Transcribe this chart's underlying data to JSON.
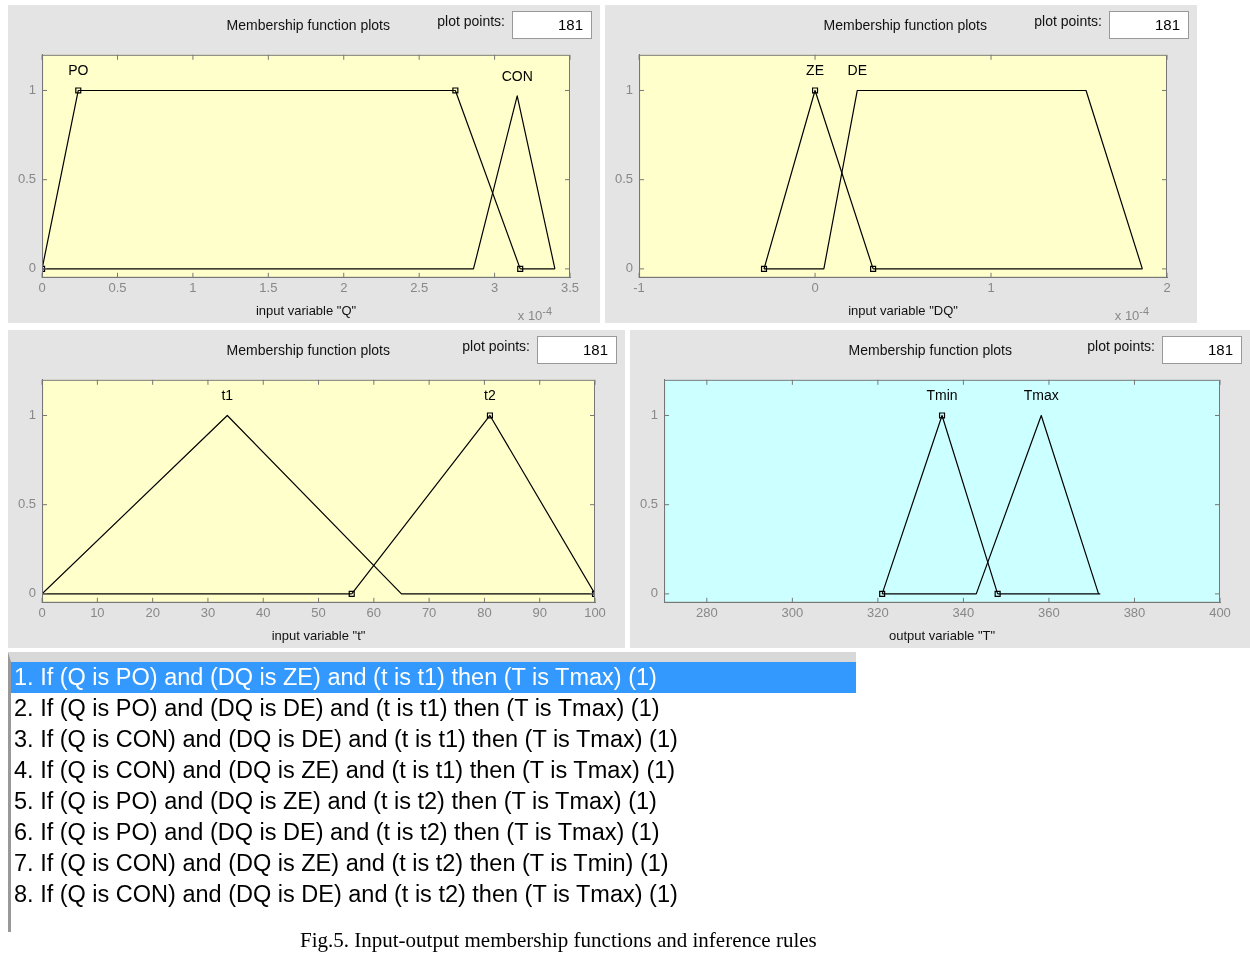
{
  "chart_data": [
    {
      "type": "line",
      "title": "Membership function plots",
      "xlabel": "input variable \"Q\"",
      "annotations": [
        "plot points:",
        "181",
        "x 10$^{-4}$"
      ],
      "xlim": [
        0,
        3.5
      ],
      "xticks": [
        0,
        0.5,
        1,
        1.5,
        2,
        2.5,
        3,
        3.5
      ],
      "ylim": [
        -0.05,
        1.2
      ],
      "yticks": [
        0,
        0.5,
        1
      ],
      "series": [
        {
          "name": "PO",
          "color": "#000000",
          "marker": "square",
          "x": [
            0,
            0.24,
            2.74,
            3.17
          ],
          "values": [
            0,
            1,
            1,
            0
          ]
        },
        {
          "color": "#000000",
          "marker": "none",
          "x": [
            3.17,
            3.4
          ],
          "values": [
            0,
            0
          ]
        },
        {
          "name": "CON",
          "color": "#000000",
          "marker": "none",
          "x": [
            0,
            2.86,
            3.15,
            3.4
          ],
          "values": [
            0,
            0,
            0.97,
            0
          ]
        }
      ]
    },
    {
      "type": "line",
      "title": "Membership function plots",
      "xlabel": "input variable \"DQ\"",
      "annotations": [
        "plot points:",
        "181",
        "x 10$^{-4}$"
      ],
      "xlim": [
        -1,
        2
      ],
      "xticks": [
        -1,
        0,
        1,
        2
      ],
      "ylim": [
        -0.05,
        1.2
      ],
      "yticks": [
        0,
        0.5,
        1
      ],
      "series": [
        {
          "name": "ZE",
          "color": "#000000",
          "marker": "square",
          "x": [
            -0.29,
            0,
            0.33
          ],
          "values": [
            0,
            1,
            0
          ]
        },
        {
          "color": "#000000",
          "marker": "none",
          "x": [
            0.33,
            1.86
          ],
          "values": [
            0,
            0
          ]
        },
        {
          "name": "DE",
          "color": "#000000",
          "marker": "none",
          "x": [
            -0.29,
            0.05,
            0.24,
            1.54,
            1.86
          ],
          "values": [
            0,
            0,
            1,
            1,
            0
          ]
        }
      ]
    },
    {
      "type": "line",
      "title": "Membership function plots",
      "xlabel": "input variable \"t\"",
      "annotations": [
        "plot points:",
        "181"
      ],
      "xlim": [
        0,
        100
      ],
      "xticks": [
        0,
        10,
        20,
        30,
        40,
        50,
        60,
        70,
        80,
        90,
        100
      ],
      "ylim": [
        -0.05,
        1.2
      ],
      "yticks": [
        0,
        0.5,
        1
      ],
      "series": [
        {
          "name": "t1",
          "color": "#000000",
          "marker": "none",
          "x": [
            0,
            33.5,
            65,
            100
          ],
          "values": [
            0,
            1,
            0,
            0
          ]
        },
        {
          "name": "t2",
          "color": "#000000",
          "marker": "square",
          "x": [
            56,
            81,
            100
          ],
          "values": [
            0,
            1,
            0
          ]
        },
        {
          "color": "#000000",
          "marker": "none",
          "x": [
            0,
            56
          ],
          "values": [
            0,
            0
          ]
        }
      ]
    },
    {
      "type": "line",
      "title": "Membership function plots",
      "xlabel": "output variable \"T\"",
      "annotations": [
        "plot points:",
        "181"
      ],
      "xlim": [
        270,
        400
      ],
      "xticks": [
        280,
        300,
        320,
        340,
        360,
        380,
        400
      ],
      "ylim": [
        -0.05,
        1.2
      ],
      "yticks": [
        0,
        0.5,
        1
      ],
      "series": [
        {
          "name": "Tmin",
          "color": "#000000",
          "marker": "square",
          "x": [
            321,
            335,
            348
          ],
          "values": [
            0,
            1,
            0
          ]
        },
        {
          "color": "#000000",
          "marker": "none",
          "x": [
            348,
            372
          ],
          "values": [
            0,
            0
          ]
        },
        {
          "name": "Tmax",
          "color": "#000000",
          "marker": "none",
          "x": [
            321,
            343,
            358.2,
            371.6
          ],
          "values": [
            0,
            0,
            1,
            0
          ]
        }
      ]
    },
    {
      "type": "other",
      "annotations": [
        "1. If (Q is PO) and (DQ is ZE) and (t is t1) then (T is Tmax) (1)",
        "2. If (Q is PO) and (DQ is DE) and (t is t1) then (T is Tmax) (1)",
        "3. If (Q is CON) and (DQ is DE) and (t is t1) then (T is Tmax) (1)",
        "4. If (Q is CON) and (DQ is ZE) and (t is t1) then (T is Tmax) (1)",
        "5. If (Q is PO) and (DQ is ZE) and (t is t2) then (T is Tmax) (1)",
        "6. If (Q is PO) and (DQ is DE) and (t is t2) then (T is Tmax) (1)",
        "7. If (Q is CON) and (DQ is ZE) and (t is t2) then (T is Tmin) (1)",
        "8. If (Q is CON) and (DQ is DE) and (t is t2) then (T is Tmax) (1)",
        "Fig.5. Input-output membership functions and inference rules"
      ]
    }
  ]
}
